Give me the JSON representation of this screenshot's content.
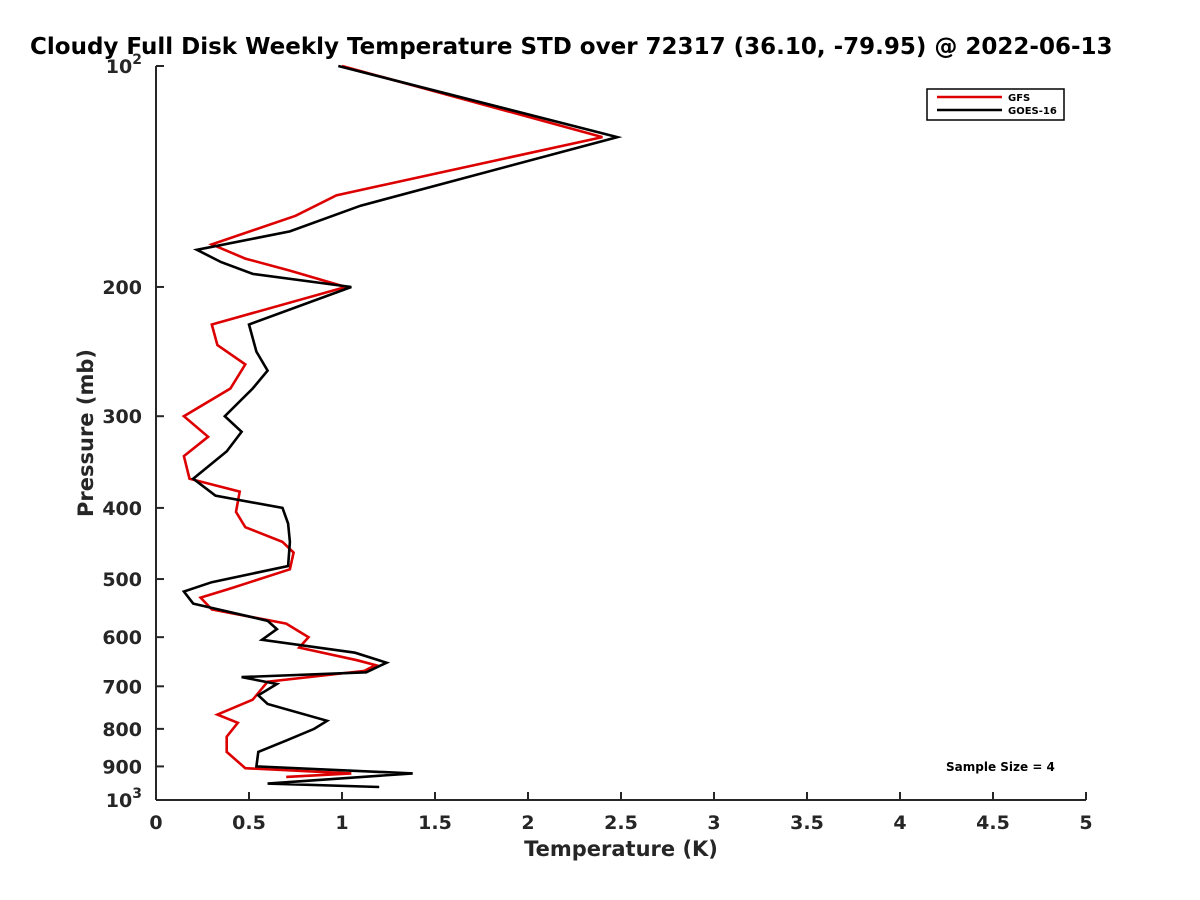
{
  "chart_data": {
    "type": "line",
    "title": "Cloudy Full Disk Weekly Temperature STD over 72317 (36.10, -79.95) @ 2022-06-13",
    "xlabel": "Temperature (K)",
    "ylabel": "Pressure (mb)",
    "xlim": [
      0,
      5
    ],
    "ylim": [
      100,
      1000
    ],
    "y_scale": "log",
    "y_reversed": true,
    "x_ticks": [
      0,
      0.5,
      1,
      1.5,
      2,
      2.5,
      3,
      3.5,
      4,
      4.5,
      5
    ],
    "x_tick_labels": [
      "0",
      "0.5",
      "1",
      "1.5",
      "2",
      "2.5",
      "3",
      "3.5",
      "4",
      "4.5",
      "5"
    ],
    "y_ticks": [
      100,
      200,
      300,
      400,
      500,
      600,
      700,
      800,
      900,
      1000
    ],
    "y_tick_labels": [
      "10^2",
      "200",
      "300",
      "400",
      "500",
      "600",
      "700",
      "800",
      "900",
      "10^3"
    ],
    "grid": false,
    "legend_position": "top-right",
    "annotation": "Sample Size = 4",
    "series": [
      {
        "name": "GFS",
        "color": "#dd0000",
        "points": [
          [
            1.0,
            100
          ],
          [
            2.4,
            125
          ],
          [
            0.97,
            150
          ],
          [
            0.75,
            160
          ],
          [
            0.3,
            175
          ],
          [
            0.48,
            183
          ],
          [
            0.72,
            190
          ],
          [
            1.02,
            200
          ],
          [
            0.3,
            225
          ],
          [
            0.33,
            240
          ],
          [
            0.48,
            255
          ],
          [
            0.4,
            275
          ],
          [
            0.15,
            300
          ],
          [
            0.28,
            320
          ],
          [
            0.15,
            340
          ],
          [
            0.18,
            365
          ],
          [
            0.45,
            380
          ],
          [
            0.43,
            405
          ],
          [
            0.48,
            425
          ],
          [
            0.68,
            445
          ],
          [
            0.74,
            460
          ],
          [
            0.72,
            485
          ],
          [
            0.4,
            515
          ],
          [
            0.24,
            530
          ],
          [
            0.3,
            550
          ],
          [
            0.7,
            575
          ],
          [
            0.82,
            600
          ],
          [
            0.77,
            620
          ],
          [
            1.08,
            645
          ],
          [
            1.18,
            655
          ],
          [
            1.12,
            667
          ],
          [
            0.6,
            690
          ],
          [
            0.52,
            730
          ],
          [
            0.33,
            765
          ],
          [
            0.44,
            785
          ],
          [
            0.38,
            820
          ],
          [
            0.38,
            860
          ],
          [
            0.48,
            905
          ],
          [
            1.05,
            920
          ],
          [
            0.7,
            930
          ]
        ]
      },
      {
        "name": "GOES-16",
        "color": "#000000",
        "points": [
          [
            0.98,
            100
          ],
          [
            2.48,
            125
          ],
          [
            1.1,
            155
          ],
          [
            0.72,
            168
          ],
          [
            0.22,
            178
          ],
          [
            0.35,
            185
          ],
          [
            0.52,
            192
          ],
          [
            1.05,
            200
          ],
          [
            0.5,
            225
          ],
          [
            0.54,
            245
          ],
          [
            0.6,
            260
          ],
          [
            0.52,
            275
          ],
          [
            0.37,
            300
          ],
          [
            0.46,
            315
          ],
          [
            0.38,
            335
          ],
          [
            0.2,
            365
          ],
          [
            0.32,
            385
          ],
          [
            0.68,
            400
          ],
          [
            0.71,
            420
          ],
          [
            0.72,
            445
          ],
          [
            0.71,
            480
          ],
          [
            0.3,
            505
          ],
          [
            0.15,
            520
          ],
          [
            0.2,
            540
          ],
          [
            0.6,
            570
          ],
          [
            0.65,
            585
          ],
          [
            0.57,
            605
          ],
          [
            1.07,
            630
          ],
          [
            1.24,
            650
          ],
          [
            1.13,
            670
          ],
          [
            0.46,
            680
          ],
          [
            0.65,
            695
          ],
          [
            0.55,
            720
          ],
          [
            0.6,
            740
          ],
          [
            0.92,
            780
          ],
          [
            0.85,
            800
          ],
          [
            0.7,
            830
          ],
          [
            0.55,
            860
          ],
          [
            0.54,
            900
          ],
          [
            1.38,
            920
          ],
          [
            0.6,
            950
          ],
          [
            1.2,
            960
          ]
        ]
      }
    ]
  }
}
